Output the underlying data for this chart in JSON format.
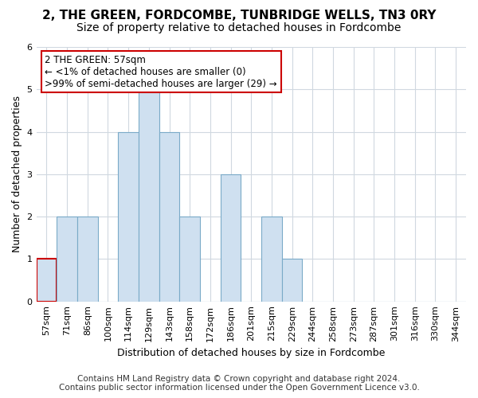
{
  "title": "2, THE GREEN, FORDCOMBE, TUNBRIDGE WELLS, TN3 0RY",
  "subtitle": "Size of property relative to detached houses in Fordcombe",
  "xlabel": "Distribution of detached houses by size in Fordcombe",
  "ylabel": "Number of detached properties",
  "bin_labels": [
    "57sqm",
    "71sqm",
    "86sqm",
    "100sqm",
    "114sqm",
    "129sqm",
    "143sqm",
    "158sqm",
    "172sqm",
    "186sqm",
    "201sqm",
    "215sqm",
    "229sqm",
    "244sqm",
    "258sqm",
    "273sqm",
    "287sqm",
    "301sqm",
    "316sqm",
    "330sqm",
    "344sqm"
  ],
  "bar_heights": [
    1,
    2,
    2,
    0,
    4,
    5,
    4,
    2,
    0,
    3,
    0,
    2,
    1,
    0,
    0,
    0,
    0,
    0,
    0,
    0,
    0
  ],
  "bar_color": "#cfe0f0",
  "bar_edge_color": "#7aaac8",
  "highlight_index": 0,
  "highlight_edge_color": "#cc0000",
  "ylim": [
    0,
    6
  ],
  "yticks": [
    0,
    1,
    2,
    3,
    4,
    5,
    6
  ],
  "annotation_box_text": "2 THE GREEN: 57sqm\n← <1% of detached houses are smaller (0)\n>99% of semi-detached houses are larger (29) →",
  "annotation_box_color": "#ffffff",
  "annotation_box_edge_color": "#cc0000",
  "footer_line1": "Contains HM Land Registry data © Crown copyright and database right 2024.",
  "footer_line2": "Contains public sector information licensed under the Open Government Licence v3.0.",
  "background_color": "#ffffff",
  "plot_background_color": "#ffffff",
  "grid_color": "#d0d8e0",
  "title_fontsize": 11,
  "subtitle_fontsize": 10,
  "axis_label_fontsize": 9,
  "tick_fontsize": 8,
  "annotation_fontsize": 8.5,
  "footer_fontsize": 7.5
}
